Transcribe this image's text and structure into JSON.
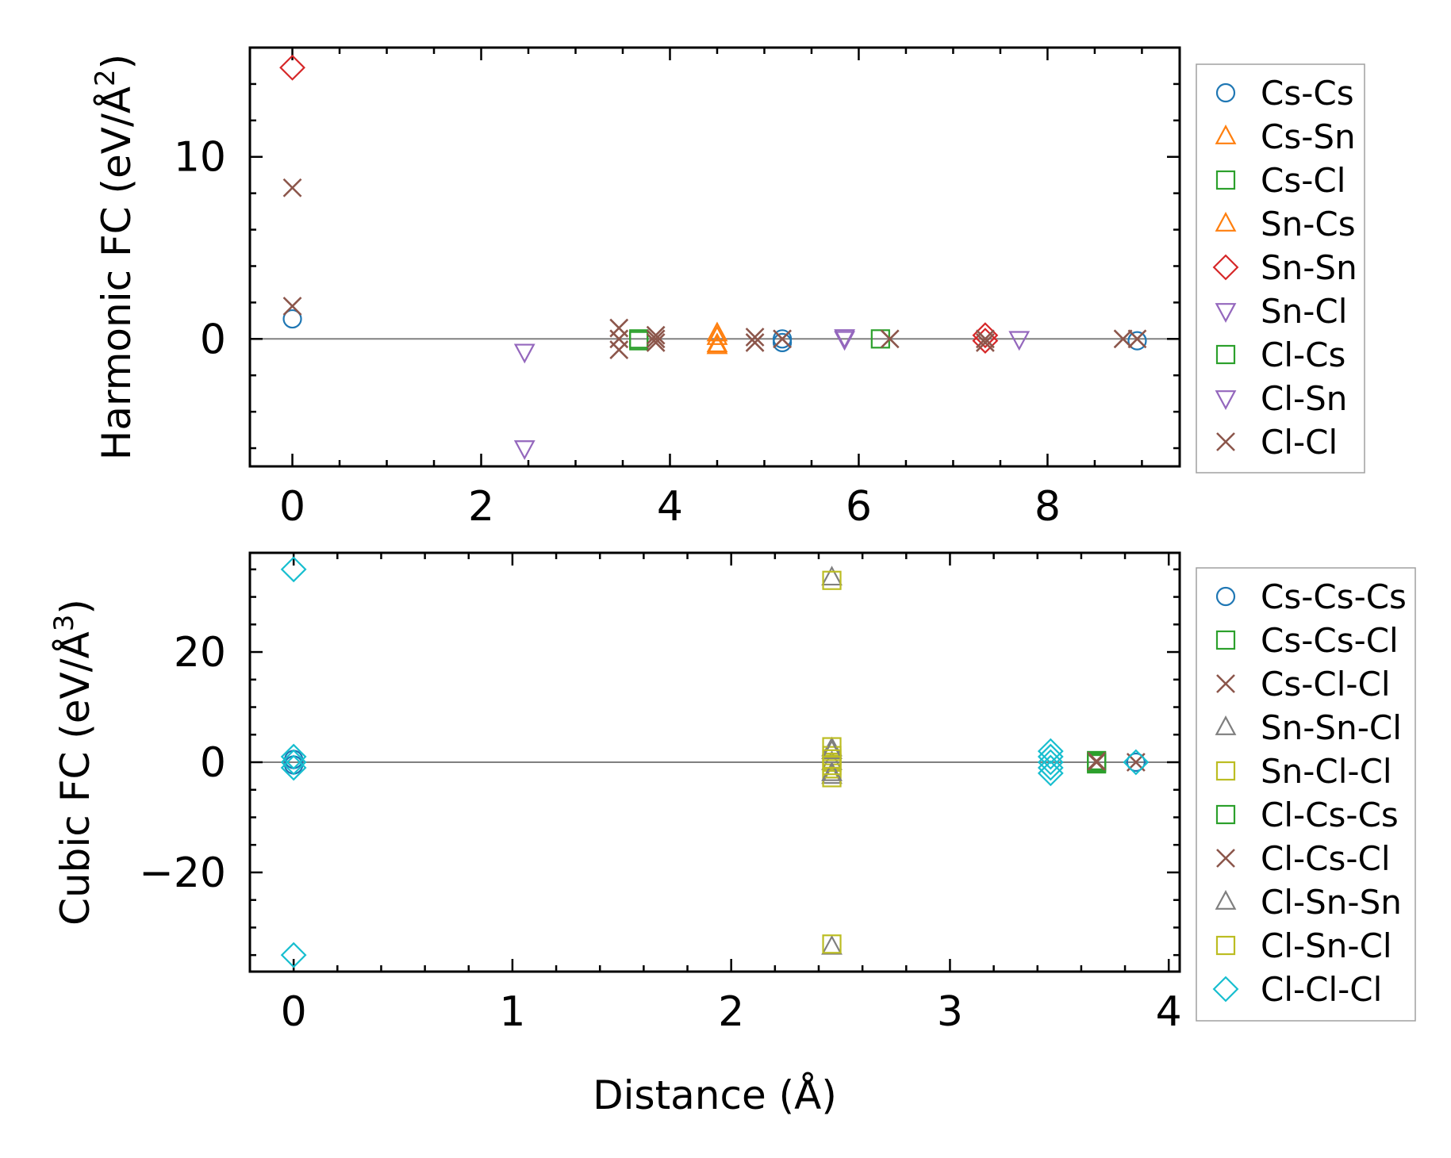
{
  "chart_data": [
    {
      "type": "scatter",
      "id": "harmonic",
      "ylabel": "Harmonic FC (eV/Å²)",
      "ylabel_prefix": "Harmonic FC (eV/Å",
      "ylabel_sup": "2",
      "ylabel_suffix": ")",
      "xlabel": "",
      "xlim": [
        -0.45,
        9.4
      ],
      "ylim": [
        -7,
        16
      ],
      "xticks": [
        0,
        2,
        4,
        6,
        8
      ],
      "xtick_labels": [
        "0",
        "2",
        "4",
        "6",
        "8"
      ],
      "yticks": [
        0,
        10
      ],
      "ytick_labels": [
        "0",
        "10"
      ],
      "x_minor_step": 0.5,
      "y_minor_step": 2,
      "legend_position": "outside-right",
      "series": [
        {
          "name": "Cs-Cs",
          "marker": "circle",
          "color": "#1f77b4",
          "points": [
            [
              0,
              1.1
            ],
            [
              5.19,
              0.0
            ],
            [
              5.19,
              -0.2
            ],
            [
              8.95,
              -0.1
            ]
          ]
        },
        {
          "name": "Cs-Sn",
          "marker": "triangle-up",
          "color": "#ff7f0e",
          "points": [
            [
              4.5,
              0.3
            ],
            [
              4.5,
              -0.3
            ]
          ]
        },
        {
          "name": "Cs-Cl",
          "marker": "square",
          "color": "#2ca02c",
          "points": [
            [
              3.67,
              0.0
            ],
            [
              3.67,
              -0.1
            ]
          ]
        },
        {
          "name": "Sn-Cs",
          "marker": "triangle-up",
          "color": "#ff7f0e",
          "points": [
            [
              4.5,
              0.1
            ],
            [
              4.5,
              -0.4
            ]
          ]
        },
        {
          "name": "Sn-Sn",
          "marker": "diamond",
          "color": "#d62728",
          "points": [
            [
              0,
              14.9
            ],
            [
              7.34,
              0.2
            ],
            [
              7.34,
              -0.1
            ]
          ]
        },
        {
          "name": "Sn-Cl",
          "marker": "triangle-down",
          "color": "#9467bd",
          "points": [
            [
              2.46,
              -0.7
            ],
            [
              2.46,
              -6.0
            ],
            [
              5.85,
              0.0
            ],
            [
              7.7,
              0.0
            ]
          ]
        },
        {
          "name": "Cl-Cs",
          "marker": "square",
          "color": "#2ca02c",
          "points": [
            [
              6.23,
              0.0
            ]
          ]
        },
        {
          "name": "Cl-Sn",
          "marker": "triangle-down",
          "color": "#9467bd",
          "points": [
            [
              5.85,
              0.1
            ]
          ]
        },
        {
          "name": "Cl-Cl",
          "marker": "x",
          "color": "#8c564b",
          "points": [
            [
              0,
              8.3
            ],
            [
              0,
              1.8
            ],
            [
              3.46,
              0.6
            ],
            [
              3.46,
              -0.6
            ],
            [
              3.46,
              0.0
            ],
            [
              3.85,
              0.2
            ],
            [
              3.85,
              -0.2
            ],
            [
              3.85,
              0.0
            ],
            [
              4.9,
              0.1
            ],
            [
              4.9,
              -0.2
            ],
            [
              5.19,
              0.0
            ],
            [
              6.33,
              0.0
            ],
            [
              7.34,
              0.0
            ],
            [
              7.34,
              -0.2
            ],
            [
              8.8,
              0.0
            ],
            [
              8.95,
              0.0
            ]
          ]
        }
      ]
    },
    {
      "type": "scatter",
      "id": "cubic",
      "ylabel": "Cubic FC (eV/Å³)",
      "ylabel_prefix": "Cubic FC (eV/Å",
      "ylabel_sup": "3",
      "ylabel_suffix": ")",
      "xlabel": "Distance (Å)",
      "xlim": [
        -0.2,
        4.05
      ],
      "ylim": [
        -38,
        38
      ],
      "xticks": [
        0,
        1,
        2,
        3,
        4
      ],
      "xtick_labels": [
        "0",
        "1",
        "2",
        "3",
        "4"
      ],
      "yticks": [
        -20,
        0,
        20
      ],
      "ytick_labels": [
        "−20",
        "0",
        "20"
      ],
      "x_minor_step": 0.2,
      "y_minor_step": 5,
      "legend_position": "outside-right",
      "series": [
        {
          "name": "Cs-Cs-Cs",
          "marker": "circle",
          "color": "#1f77b4",
          "points": [
            [
              0,
              0.5
            ],
            [
              0,
              -0.5
            ],
            [
              3.85,
              0.0
            ]
          ]
        },
        {
          "name": "Cs-Cs-Cl",
          "marker": "square",
          "color": "#2ca02c",
          "points": [
            [
              3.67,
              0.3
            ],
            [
              3.67,
              -0.3
            ]
          ]
        },
        {
          "name": "Cs-Cl-Cl",
          "marker": "x",
          "color": "#8c564b",
          "points": [
            [
              3.67,
              0.0
            ],
            [
              3.85,
              0.0
            ]
          ]
        },
        {
          "name": "Sn-Sn-Cl",
          "marker": "triangle-up",
          "color": "#7f7f7f",
          "points": [
            [
              2.46,
              33.5
            ],
            [
              2.46,
              -33.5
            ],
            [
              2.46,
              2.5
            ],
            [
              2.46,
              -2.5
            ],
            [
              2.46,
              0.0
            ]
          ]
        },
        {
          "name": "Sn-Cl-Cl",
          "marker": "square",
          "color": "#bcbd22",
          "points": [
            [
              2.46,
              33.0
            ],
            [
              2.46,
              -33.0
            ],
            [
              2.46,
              2.8
            ],
            [
              2.46,
              1.2
            ],
            [
              2.46,
              0.0
            ],
            [
              2.46,
              -1.2
            ],
            [
              2.46,
              -2.8
            ]
          ]
        },
        {
          "name": "Cl-Cs-Cs",
          "marker": "square",
          "color": "#2ca02c",
          "points": [
            [
              3.67,
              0.0
            ]
          ]
        },
        {
          "name": "Cl-Cs-Cl",
          "marker": "x",
          "color": "#8c564b",
          "points": [
            [
              3.67,
              0.2
            ]
          ]
        },
        {
          "name": "Cl-Sn-Sn",
          "marker": "triangle-up",
          "color": "#7f7f7f",
          "points": [
            [
              2.46,
              2.0
            ],
            [
              2.46,
              -2.0
            ]
          ]
        },
        {
          "name": "Cl-Sn-Cl",
          "marker": "square",
          "color": "#bcbd22",
          "points": [
            [
              2.46,
              0.6
            ],
            [
              2.46,
              -0.6
            ]
          ]
        },
        {
          "name": "Cl-Cl-Cl",
          "marker": "diamond",
          "color": "#17becf",
          "points": [
            [
              0,
              35.0
            ],
            [
              0,
              -35.0
            ],
            [
              0,
              1.0
            ],
            [
              0,
              0.0
            ],
            [
              0,
              -1.0
            ],
            [
              3.46,
              2.0
            ],
            [
              3.46,
              1.0
            ],
            [
              3.46,
              0.0
            ],
            [
              3.46,
              -1.0
            ],
            [
              3.46,
              -2.0
            ],
            [
              3.85,
              0.0
            ]
          ]
        }
      ]
    }
  ]
}
